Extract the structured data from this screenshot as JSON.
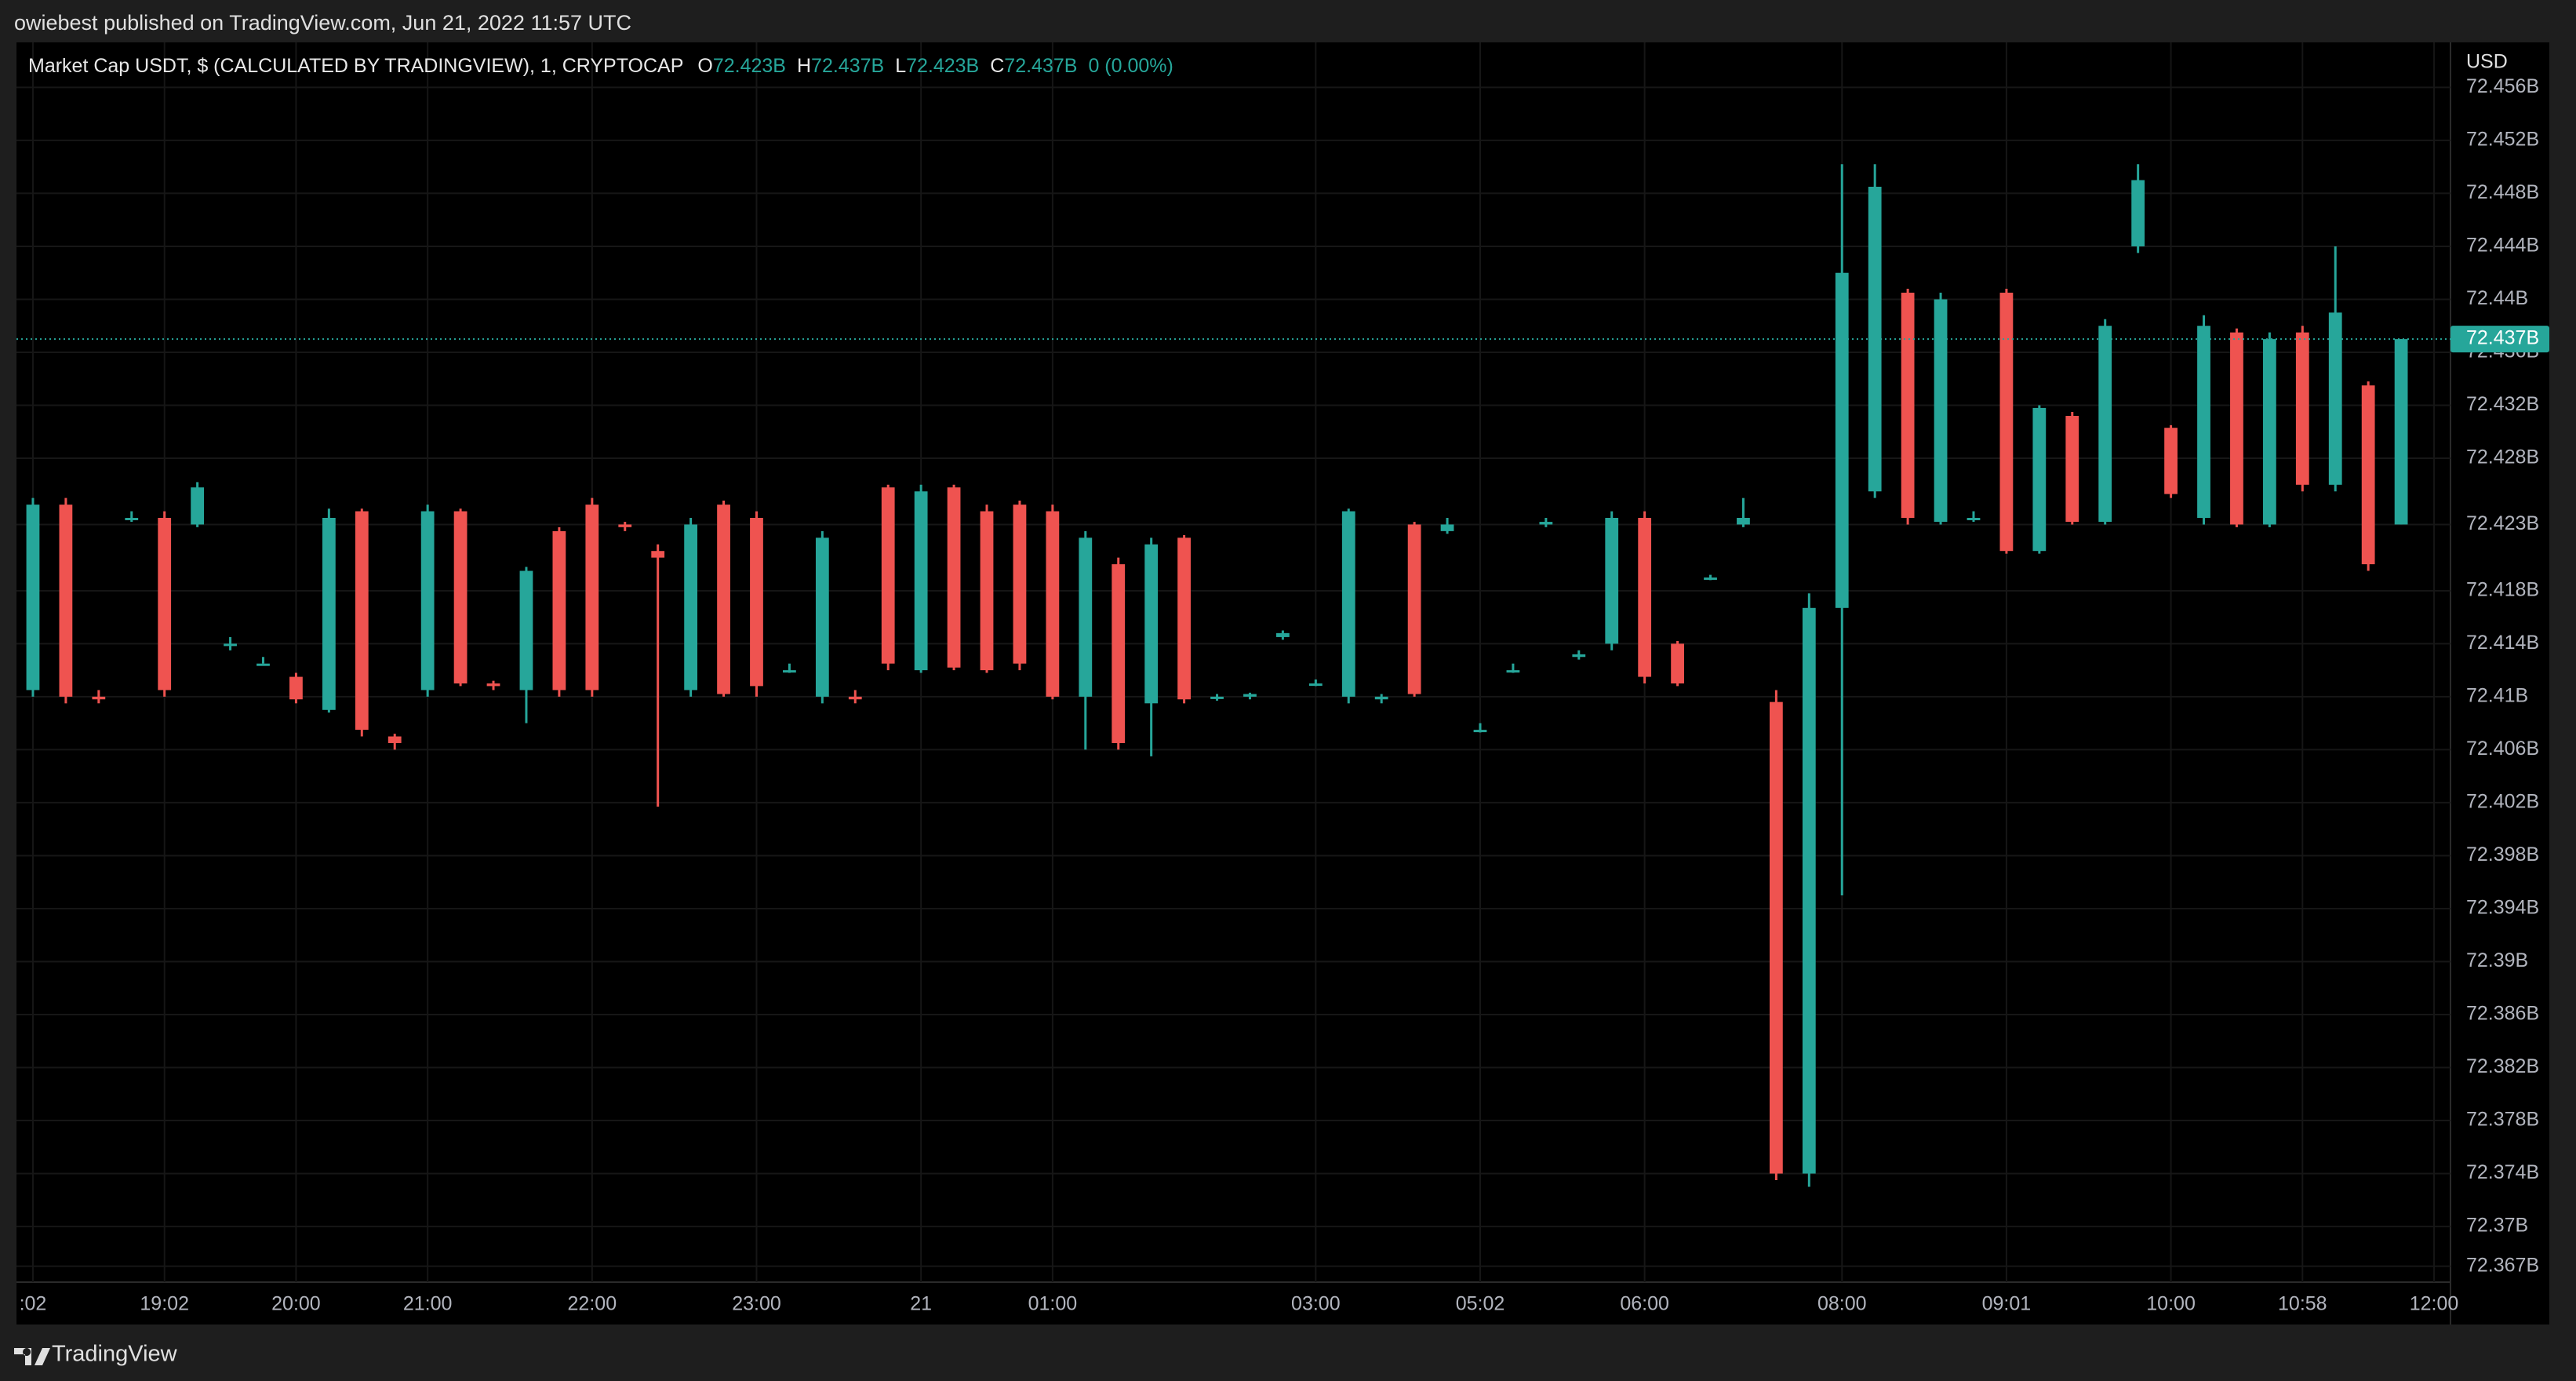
{
  "header": {
    "text": "owiebest published on TradingView.com, Jun 21, 2022 11:57 UTC"
  },
  "footer": {
    "brand": "TradingView"
  },
  "chart_data": {
    "type": "candlestick",
    "title": "Market Cap USDT, $ (CALCULATED BY TRADINGVIEW), 1, CRYPTOCAP",
    "legend": [
      {
        "label": "O",
        "value": "72.423B"
      },
      {
        "label": "H",
        "value": "72.437B"
      },
      {
        "label": "L",
        "value": "72.423B"
      },
      {
        "label": "C",
        "value": "72.437B"
      }
    ],
    "change": "0 (0.00%)",
    "y_unit": "USD",
    "up_color": "#26a69a",
    "down_color": "#ef5350",
    "last_price": {
      "value": 72.437,
      "label": "72.437B"
    },
    "categories": [
      ":02",
      null,
      null,
      null,
      "19:02",
      null,
      null,
      null,
      "20:00",
      null,
      null,
      null,
      "21:00",
      null,
      null,
      null,
      null,
      "22:00",
      null,
      null,
      null,
      null,
      "23:00",
      null,
      null,
      null,
      null,
      "21",
      null,
      null,
      null,
      "01:00",
      null,
      null,
      null,
      null,
      null,
      null,
      null,
      "03:00",
      null,
      null,
      null,
      null,
      "05:02",
      null,
      null,
      null,
      null,
      "06:00",
      null,
      null,
      null,
      null,
      null,
      "08:00",
      null,
      null,
      null,
      null,
      "09:01",
      null,
      null,
      null,
      null,
      "10:00",
      null,
      null,
      null,
      "10:58",
      null,
      null,
      null,
      "12:00"
    ],
    "open": [
      72.4105,
      72.4245,
      72.41,
      72.4235,
      72.4235,
      72.423,
      72.414,
      72.4125,
      72.4115,
      72.409,
      72.424,
      72.407,
      72.4105,
      72.424,
      72.411,
      72.4105,
      72.4225,
      72.4245,
      72.423,
      72.421,
      72.4105,
      72.4245,
      72.4235,
      72.412,
      72.41,
      72.41,
      72.4258,
      72.412,
      72.4258,
      72.424,
      72.4245,
      72.424,
      72.41,
      72.42,
      72.4095,
      72.422,
      72.41,
      72.41,
      72.4145,
      72.411,
      72.41,
      72.4098,
      72.423,
      72.4225,
      72.4075,
      72.412,
      72.423,
      72.413,
      72.414,
      72.4235,
      72.414,
      72.419,
      72.423,
      72.4096,
      72.374,
      72.4167,
      72.4255,
      72.4405,
      72.4232,
      72.4235,
      72.4405,
      72.421,
      72.4312,
      72.4232,
      72.444,
      72.4303,
      72.4235,
      72.4375,
      72.423,
      72.4375,
      72.426,
      72.4335,
      72.423,
      null
    ],
    "high": [
      72.425,
      72.425,
      72.4105,
      72.424,
      72.424,
      72.4262,
      72.4145,
      72.413,
      72.4118,
      72.4242,
      72.4242,
      72.4072,
      72.4245,
      72.4242,
      72.4112,
      72.4198,
      72.4228,
      72.425,
      72.4232,
      72.4215,
      72.4235,
      72.4248,
      72.424,
      72.4125,
      72.4225,
      72.4105,
      72.426,
      72.426,
      72.426,
      72.4245,
      72.4248,
      72.4245,
      72.4225,
      72.4205,
      72.422,
      72.4222,
      72.4102,
      72.4103,
      72.415,
      72.4113,
      72.4242,
      72.4102,
      72.4232,
      72.4235,
      72.408,
      72.4125,
      72.4235,
      72.4135,
      72.424,
      72.424,
      72.4142,
      72.4192,
      72.425,
      72.4105,
      72.4178,
      72.4502,
      72.4502,
      72.4408,
      72.4405,
      72.424,
      72.4408,
      72.432,
      72.4315,
      72.4385,
      72.4502,
      72.4305,
      72.4388,
      72.4378,
      72.4375,
      72.438,
      72.444,
      72.4338,
      72.437,
      null
    ],
    "low": [
      72.41,
      72.4095,
      72.4095,
      72.4232,
      72.41,
      72.4228,
      72.4135,
      72.4125,
      72.4095,
      72.4088,
      72.407,
      72.406,
      72.41,
      72.4108,
      72.4105,
      72.408,
      72.41,
      72.41,
      72.4225,
      72.4017,
      72.41,
      72.41,
      72.41,
      72.4118,
      72.4095,
      72.4095,
      72.412,
      72.4118,
      72.412,
      72.4118,
      72.412,
      72.4098,
      72.406,
      72.406,
      72.4055,
      72.4095,
      72.4097,
      72.4098,
      72.4143,
      72.4108,
      72.4095,
      72.4095,
      72.41,
      72.4223,
      72.4073,
      72.4118,
      72.4228,
      72.4128,
      72.4135,
      72.411,
      72.4108,
      72.4188,
      72.4228,
      72.3735,
      72.373,
      72.395,
      72.425,
      72.423,
      72.423,
      72.4232,
      72.4208,
      72.4208,
      72.423,
      72.423,
      72.4435,
      72.425,
      72.423,
      72.4228,
      72.4228,
      72.4255,
      72.4255,
      72.4195,
      72.423,
      null
    ],
    "close": [
      72.4245,
      72.41,
      72.4098,
      72.4235,
      72.4105,
      72.4258,
      72.414,
      72.4125,
      72.4098,
      72.4235,
      72.4075,
      72.4065,
      72.424,
      72.411,
      72.4108,
      72.4195,
      72.4105,
      72.4105,
      72.4228,
      72.4205,
      72.423,
      72.4102,
      72.4108,
      72.412,
      72.422,
      72.4098,
      72.4125,
      72.4255,
      72.4122,
      72.412,
      72.4125,
      72.41,
      72.422,
      72.4065,
      72.4215,
      72.4098,
      72.41,
      72.4102,
      72.4148,
      72.411,
      72.424,
      72.41,
      72.4102,
      72.423,
      72.4075,
      72.412,
      72.4232,
      72.4132,
      72.4235,
      72.4115,
      72.411,
      72.419,
      72.4235,
      72.374,
      72.4167,
      72.442,
      72.4485,
      72.4235,
      72.44,
      72.4235,
      72.421,
      72.4318,
      72.4232,
      72.438,
      72.449,
      72.4253,
      72.438,
      72.423,
      72.437,
      72.426,
      72.439,
      72.42,
      72.437,
      null
    ],
    "ylim": [
      72.3658,
      72.4594
    ],
    "yticks": [
      {
        "value": 72.456,
        "label": "72.456B"
      },
      {
        "value": 72.452,
        "label": "72.452B"
      },
      {
        "value": 72.448,
        "label": "72.448B"
      },
      {
        "value": 72.444,
        "label": "72.444B"
      },
      {
        "value": 72.44,
        "label": "72.44B"
      },
      {
        "value": 72.436,
        "label": "72.436B"
      },
      {
        "value": 72.432,
        "label": "72.432B"
      },
      {
        "value": 72.428,
        "label": "72.428B"
      },
      {
        "value": 72.423,
        "label": "72.423B"
      },
      {
        "value": 72.418,
        "label": "72.418B"
      },
      {
        "value": 72.414,
        "label": "72.414B"
      },
      {
        "value": 72.41,
        "label": "72.41B"
      },
      {
        "value": 72.406,
        "label": "72.406B"
      },
      {
        "value": 72.402,
        "label": "72.402B"
      },
      {
        "value": 72.398,
        "label": "72.398B"
      },
      {
        "value": 72.394,
        "label": "72.394B"
      },
      {
        "value": 72.39,
        "label": "72.39B"
      },
      {
        "value": 72.386,
        "label": "72.386B"
      },
      {
        "value": 72.382,
        "label": "72.382B"
      },
      {
        "value": 72.378,
        "label": "72.378B"
      },
      {
        "value": 72.374,
        "label": "72.374B"
      },
      {
        "value": 72.37,
        "label": "72.37B"
      },
      {
        "value": 72.367,
        "label": "72.367B"
      }
    ],
    "grid": true
  }
}
